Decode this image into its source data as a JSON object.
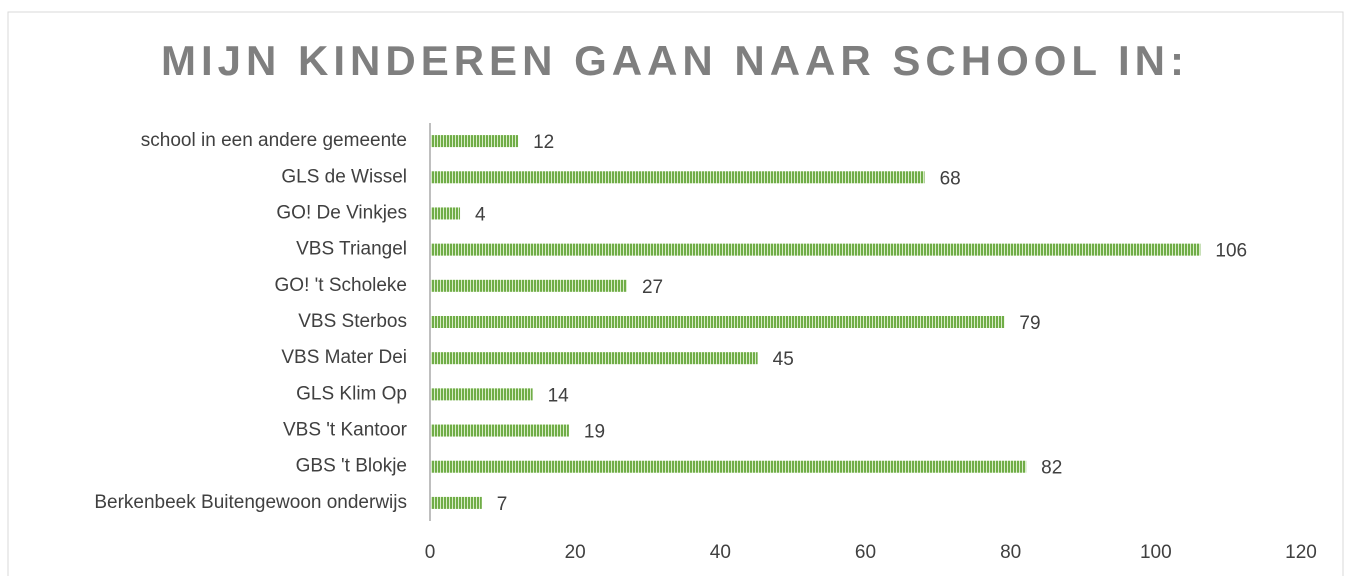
{
  "chart_data": {
    "type": "bar",
    "orientation": "horizontal",
    "title": "MIJN KINDEREN GAAN NAAR SCHOOL IN:",
    "categories": [
      "school in een andere gemeente",
      "GLS de Wissel",
      "GO! De Vinkjes",
      "VBS Triangel",
      "GO! 't Scholeke",
      "VBS Sterbos",
      "VBS Mater Dei",
      "GLS Klim Op",
      "VBS 't Kantoor",
      "GBS 't Blokje",
      "Berkenbeek Buitengewoon onderwijs"
    ],
    "values": [
      12,
      68,
      4,
      106,
      27,
      79,
      45,
      14,
      19,
      82,
      7
    ],
    "color": "#70ad47",
    "xlim": [
      0,
      120
    ],
    "xticks": [
      0,
      20,
      40,
      60,
      80,
      100,
      120
    ],
    "grid": false
  }
}
